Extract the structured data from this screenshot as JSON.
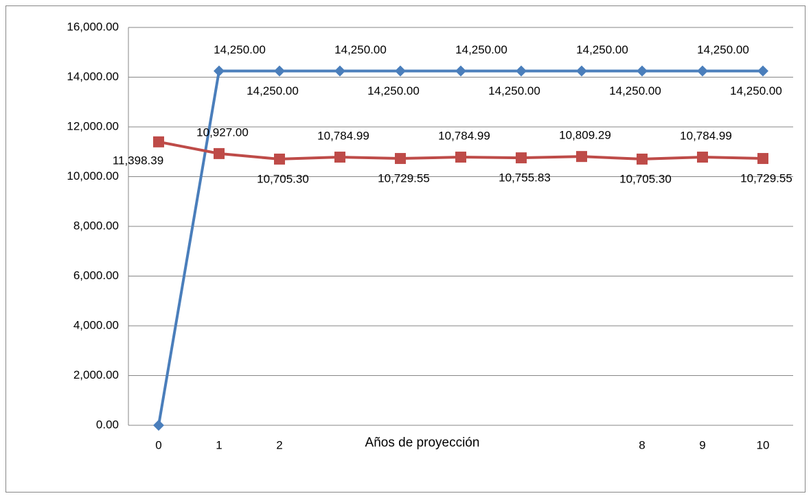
{
  "chart_data": {
    "type": "line",
    "x_label": "Años de proyección",
    "categories": [
      0,
      1,
      2,
      null,
      null,
      null,
      null,
      null,
      8,
      9,
      10
    ],
    "series": [
      {
        "color": "#4a7ebb",
        "marker": "diamond",
        "values": [
          0,
          14250,
          14250,
          14250,
          14250,
          14250,
          14250,
          14250,
          14250,
          14250,
          14250
        ],
        "value_labels": [
          null,
          "14,250.00",
          "14,250.00",
          "14,250.00",
          "14,250.00",
          "14,250.00",
          "14,250.00",
          "14,250.00",
          "14,250.00",
          "14,250.00",
          "14,250.00"
        ]
      },
      {
        "color": "#be4b48",
        "marker": "square",
        "values": [
          11398.39,
          10927,
          10705.3,
          10784.99,
          10729.55,
          10784.99,
          10755.83,
          10809.29,
          10705.3,
          10784.99,
          10729.55
        ],
        "value_labels": [
          "11,398.39",
          "10,927.00",
          "10,705.30",
          "10,784.99",
          "10,729.55",
          "10,784.99",
          "10,755.83",
          "10,809.29",
          "10,705.30",
          "10,784.99",
          "10,729.55"
        ]
      }
    ],
    "ylim": [
      0,
      16000
    ],
    "yticks": [
      {
        "value": 0,
        "label": "0.00"
      },
      {
        "value": 2000,
        "label": "2,000.00"
      },
      {
        "value": 4000,
        "label": "4,000.00"
      },
      {
        "value": 6000,
        "label": "6,000.00"
      },
      {
        "value": 8000,
        "label": "8,000.00"
      },
      {
        "value": 10000,
        "label": "10,000.00"
      },
      {
        "value": 12000,
        "label": "12,000.00"
      },
      {
        "value": 14000,
        "label": "14,000.00"
      },
      {
        "value": 16000,
        "label": "16,000.00"
      }
    ],
    "grid": true
  }
}
